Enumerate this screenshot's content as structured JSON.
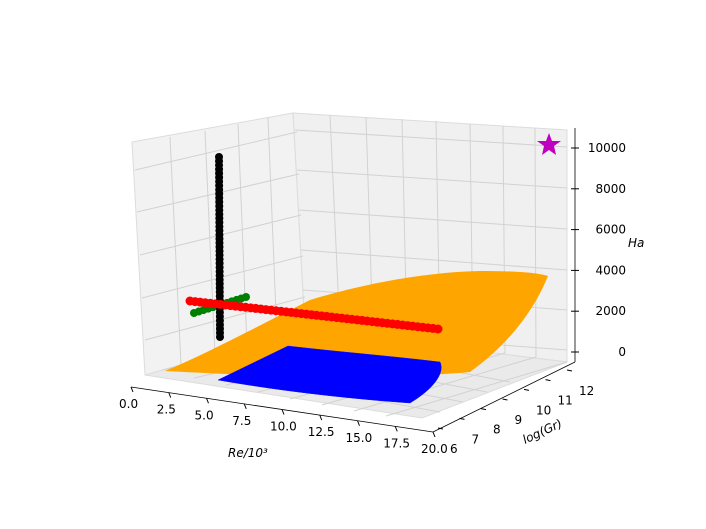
{
  "chart_data": {
    "type": "scatter",
    "subtype": "3d",
    "title": "",
    "axes": {
      "x": {
        "label": "Re/10³",
        "ticks": [
          "0.0",
          "2.5",
          "5.0",
          "7.5",
          "10.0",
          "12.5",
          "15.0",
          "17.5",
          "20.0"
        ],
        "range": [
          0,
          20
        ]
      },
      "y": {
        "label": "log(Gr)",
        "ticks": [
          "6",
          "7",
          "8",
          "9",
          "10",
          "11",
          "12"
        ],
        "range": [
          6,
          12
        ]
      },
      "z": {
        "label": "Ha",
        "ticks": [
          "0",
          "2000",
          "4000",
          "6000",
          "8000",
          "10000"
        ],
        "range": [
          0,
          10000
        ]
      }
    },
    "grid": true,
    "legend": null,
    "surfaces": [
      {
        "color": "#ffa500",
        "description_level": "upper surface, rising from ~0 at low Re to ~4000 at high Re and high log(Gr)"
      },
      {
        "color": "#0000ff",
        "description_level": "lower surface near Ha ≈ 0"
      }
    ],
    "series": [
      {
        "color": "#000000",
        "marker": "circle",
        "line": "vertical at Re ≈ 1, log(Gr) ≈ 6, Ha from 0 to 10000"
      },
      {
        "color": "#ff0000",
        "marker": "circle",
        "line": "Re from 0 to 20 at Ha ≈ 2000"
      },
      {
        "color": "#008000",
        "marker": "circle",
        "line": "short line along log(Gr) at low Re, Ha ≈ 2000"
      },
      {
        "color": "#bf00bf",
        "marker": "star",
        "point": "Re ≈ 20, log(Gr) ≈ 12, Ha ≈ 10000"
      }
    ]
  }
}
